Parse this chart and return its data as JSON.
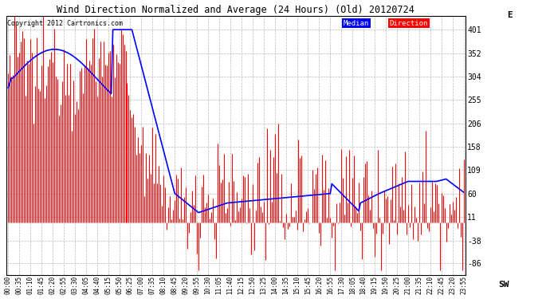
{
  "title": "Wind Direction Normalized and Average (24 Hours) (Old) 20120724",
  "copyright": "Copyright 2012 Cartronics.com",
  "ylim": [
    -110,
    430
  ],
  "yticks": [
    -86,
    -38,
    11,
    60,
    109,
    158,
    206,
    255,
    304,
    352,
    401
  ],
  "bg_color": "#ffffff",
  "grid_color": "#bbbbbb",
  "bar_color": "#ff0000",
  "line_color": "#0000ff",
  "legend_median_bg": "#0000ff",
  "legend_direction_bg": "#ff0000",
  "legend_text_color": "#ffffff",
  "n_points": 288,
  "figsize": [
    6.9,
    3.75
  ],
  "dpi": 100
}
